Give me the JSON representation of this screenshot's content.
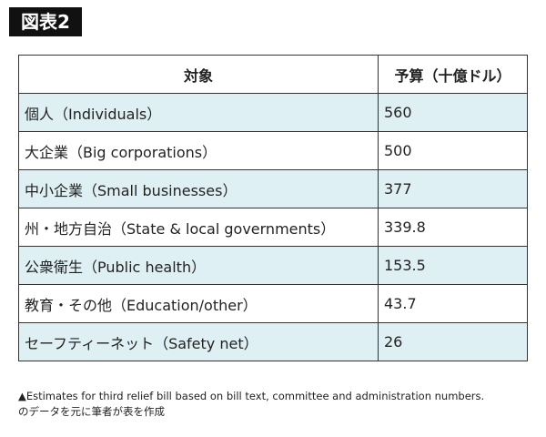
{
  "badge": "図表2",
  "table": {
    "header": [
      "対象",
      "予算（十億ドル）"
    ],
    "rows": [
      [
        "個人（Individuals）",
        560
      ],
      [
        "大企業（Big corporations）",
        500
      ],
      [
        "中小企業（Small businesses）",
        377
      ],
      [
        "州・地方自治（State & local governments）",
        339.8
      ],
      [
        "公衆衛生（Public health）",
        153.5
      ],
      [
        "教育・その他（Education/other）",
        43.7
      ],
      [
        "セーフティーネット（Safety net）",
        26
      ]
    ]
  },
  "note": [
    "▲Estimates for third relief bill based on bill text, committee and administration numbers.",
    "のデータを元に筆者が表を作成"
  ]
}
